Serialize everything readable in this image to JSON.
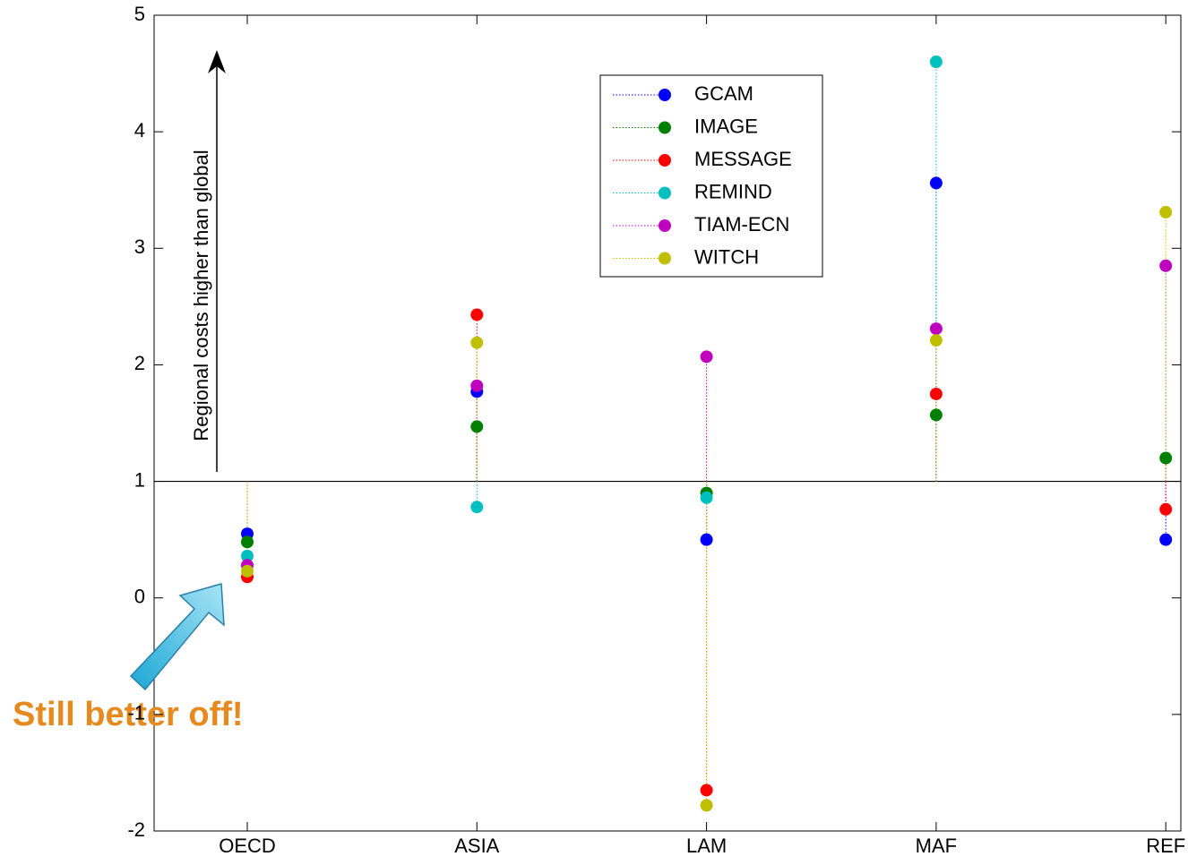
{
  "chart_data": {
    "type": "stem",
    "categories": [
      "OECD",
      "ASIA",
      "LAM",
      "MAF",
      "REF"
    ],
    "series": [
      {
        "name": "GCAM",
        "color": "#0000ff",
        "values": [
          0.55,
          1.77,
          0.5,
          3.56,
          0.5
        ]
      },
      {
        "name": "IMAGE",
        "color": "#008000",
        "values": [
          0.48,
          1.47,
          0.9,
          1.57,
          1.2
        ]
      },
      {
        "name": "MESSAGE",
        "color": "#ff0000",
        "values": [
          0.18,
          2.43,
          -1.65,
          1.75,
          0.76
        ]
      },
      {
        "name": "REMIND",
        "color": "#00bfbf",
        "values": [
          0.36,
          0.78,
          0.86,
          4.6,
          null
        ]
      },
      {
        "name": "TIAM-ECN",
        "color": "#bf00bf",
        "values": [
          0.28,
          1.82,
          2.07,
          2.31,
          2.85
        ]
      },
      {
        "name": "WITCH",
        "color": "#bfbf00",
        "values": [
          0.23,
          2.19,
          -1.78,
          2.21,
          3.31
        ]
      }
    ],
    "ylim": [
      -2,
      5
    ],
    "yticks": [
      -2,
      -1,
      0,
      1,
      2,
      3,
      4,
      5
    ],
    "reference_line": 1,
    "legend": "top-center",
    "annotations": [
      "Regional costs higher than global",
      "Still better off!"
    ]
  }
}
